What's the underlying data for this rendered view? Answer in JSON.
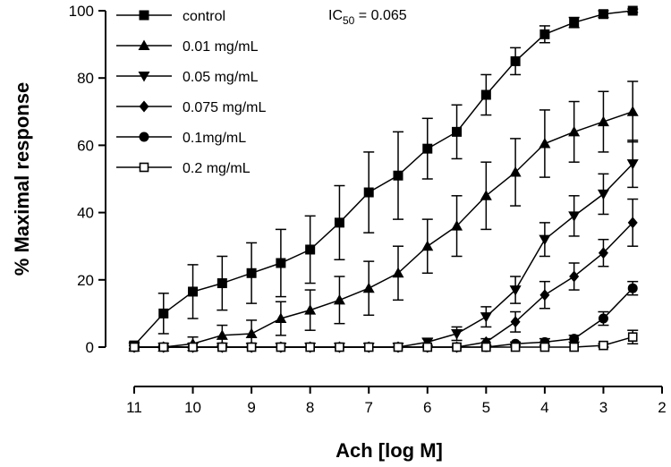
{
  "chart_data": {
    "type": "line",
    "xlabel": "Ach [log M]",
    "ylabel": "% Maximal response",
    "xlim": [
      11,
      2
    ],
    "ylim": [
      0,
      100
    ],
    "x_ticks": [
      "11",
      "10",
      "9",
      "8",
      "7",
      "6",
      "5",
      "4",
      "3",
      "2"
    ],
    "y_ticks": [
      "0",
      "20",
      "40",
      "60",
      "80",
      "100"
    ],
    "grid": false,
    "legend_position": "top-left",
    "annotation": {
      "prefix": "IC",
      "sub": "50",
      "suffix": " = 0.065"
    },
    "x": [
      11,
      10.5,
      10,
      9.5,
      9,
      8.5,
      8,
      7.5,
      7,
      6.5,
      6,
      5.5,
      5,
      4.5,
      4,
      3.5,
      3,
      2.5
    ],
    "series": [
      {
        "name": "control",
        "marker": "square-filled",
        "values": [
          0.5,
          10,
          16.5,
          19,
          22,
          25,
          29,
          37,
          46,
          51,
          59,
          64,
          75,
          85,
          93,
          96.5,
          99,
          100
        ],
        "errors": [
          1,
          6,
          8,
          8,
          9,
          10,
          10,
          11,
          12,
          13,
          9,
          8,
          6,
          4,
          2.5,
          1.5,
          1,
          0.5
        ]
      },
      {
        "name": "0.01 mg/mL",
        "marker": "triangle-up-filled",
        "values": [
          0,
          0,
          1,
          3.5,
          4,
          8.5,
          11,
          14,
          17.5,
          22,
          30,
          36,
          45,
          52,
          60.5,
          64,
          67,
          70
        ],
        "errors": [
          0.5,
          0.5,
          2,
          3,
          4,
          5,
          6,
          7,
          8,
          8,
          8,
          9,
          10,
          10,
          10,
          9,
          9,
          9
        ]
      },
      {
        "name": "0.05 mg/mL",
        "marker": "triangle-down-filled",
        "values": [
          0,
          0,
          0,
          0,
          0,
          0,
          0,
          0,
          0,
          0,
          1.5,
          4,
          9,
          17,
          32,
          39,
          45.5,
          54.5
        ],
        "errors": [
          0,
          0,
          0,
          0,
          0,
          0,
          0,
          0,
          0,
          0,
          1,
          2,
          3,
          4,
          5,
          6,
          6,
          7
        ]
      },
      {
        "name": "0.075 mg/mL",
        "marker": "diamond-filled",
        "values": [
          0,
          0,
          0,
          0,
          0,
          0,
          0,
          0,
          0,
          0,
          0,
          0,
          1.5,
          7.5,
          15.5,
          21,
          28,
          37
        ],
        "errors": [
          0,
          0,
          0,
          0,
          0,
          0,
          0,
          0,
          0,
          0,
          0,
          0,
          1,
          3,
          4,
          4,
          4,
          7
        ]
      },
      {
        "name": "0.1mg/mL",
        "marker": "circle-filled",
        "values": [
          0,
          0,
          0,
          0,
          0,
          0,
          0,
          0,
          0,
          0,
          0,
          0,
          0,
          1,
          1.5,
          2.5,
          8.5,
          17.5
        ],
        "errors": [
          0,
          0,
          0,
          0,
          0,
          0,
          0,
          0,
          0,
          0,
          0,
          0,
          0,
          0.5,
          1,
          1,
          2,
          2
        ]
      },
      {
        "name": "0.2 mg/mL",
        "marker": "square-open",
        "values": [
          0,
          0,
          0,
          0,
          0,
          0,
          0,
          0,
          0,
          0,
          0,
          0,
          0,
          0,
          0,
          0,
          0.5,
          3
        ],
        "errors": [
          0,
          0,
          0,
          0,
          0,
          0,
          0,
          0,
          0,
          0,
          0,
          0,
          0,
          0,
          0,
          0,
          0.5,
          2
        ]
      }
    ]
  }
}
